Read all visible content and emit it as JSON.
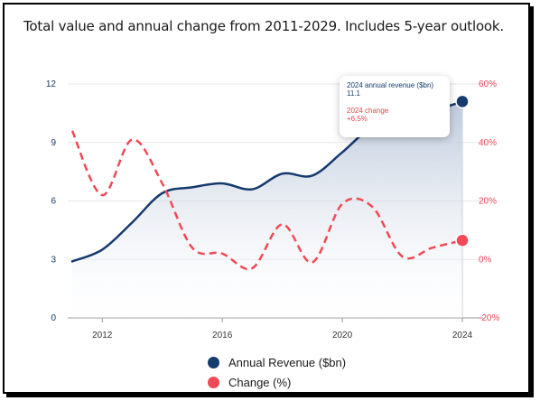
{
  "title": "Total value and annual change from 2011-2029. Includes 5-year outlook.",
  "colors": {
    "revenue": "#153a6e",
    "change": "#ef4a56",
    "area_top": "#b9c6d9"
  },
  "tooltip": {
    "label1": "2024 annual revenue ($bn)",
    "value1": "11.1",
    "label2": "2024 change",
    "value2": "+6.5%"
  },
  "chart_data": {
    "type": "line",
    "x": [
      2011,
      2012,
      2013,
      2014,
      2015,
      2016,
      2017,
      2018,
      2019,
      2020,
      2021,
      2022,
      2023,
      2024
    ],
    "series": [
      {
        "name": "Annual Revenue ($bn)",
        "axis": "left",
        "values": [
          2.9,
          3.5,
          4.9,
          6.4,
          6.7,
          6.9,
          6.6,
          7.4,
          7.3,
          8.5,
          9.8,
          10.1,
          10.6,
          11.1
        ]
      },
      {
        "name": "Change (%)",
        "axis": "right",
        "values": [
          44,
          22,
          41,
          26,
          4,
          2,
          -3,
          12,
          -1,
          19,
          18,
          1,
          4,
          6.5
        ]
      }
    ],
    "left_ylim": [
      0,
      12
    ],
    "left_ticks": [
      0,
      3,
      6,
      9,
      12
    ],
    "right_ylim": [
      -20,
      60
    ],
    "right_ticks": [
      -20,
      0,
      20,
      40,
      60
    ],
    "right_tick_labels": [
      "-20%",
      "0%",
      "20%",
      "40%",
      "60%"
    ],
    "x_ticks": [
      2012,
      2016,
      2020,
      2024
    ],
    "grid": true,
    "legend_position": "bottom-center"
  }
}
